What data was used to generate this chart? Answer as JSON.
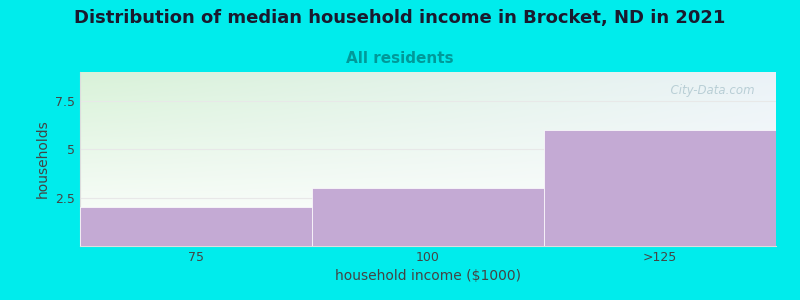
{
  "title": "Distribution of median household income in Brocket, ND in 2021",
  "subtitle": "All residents",
  "xlabel": "household income ($1000)",
  "ylabel": "households",
  "categories": [
    "75",
    "100",
    ">125"
  ],
  "values": [
    2,
    3,
    6
  ],
  "bar_color": "#c4aad4",
  "bar_edgecolor": "#ffffff",
  "background_color": "#00ecec",
  "plot_bg_top_color": "#d8f0d8",
  "plot_bg_bottom_color": "#f8fff8",
  "plot_bg_right_color": "#f0f0f8",
  "ylim": [
    0,
    9
  ],
  "yticks": [
    0,
    2.5,
    5,
    7.5
  ],
  "title_fontsize": 13,
  "subtitle_fontsize": 11,
  "subtitle_color": "#009999",
  "axis_label_fontsize": 10,
  "tick_fontsize": 9,
  "watermark": "  City-Data.com",
  "watermark_color": "#b0c8d0",
  "grid_color": "#e8e8e8"
}
